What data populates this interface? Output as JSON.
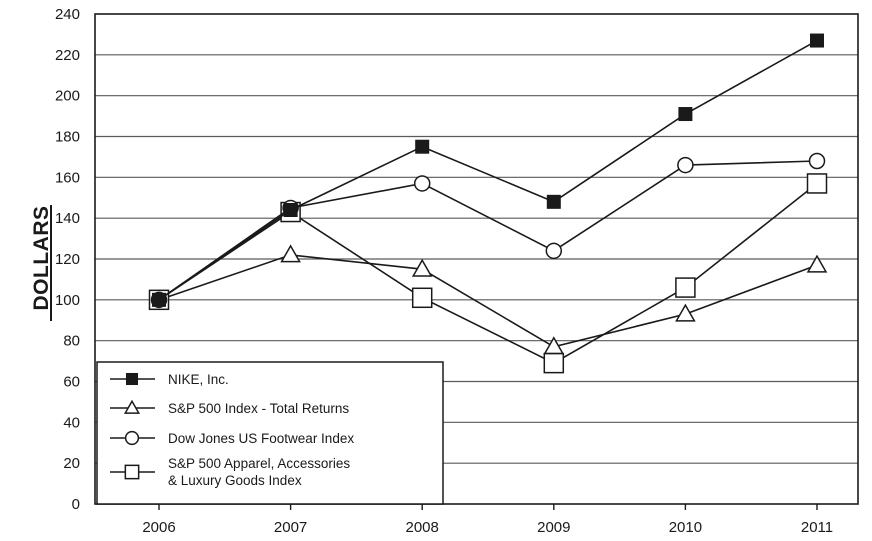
{
  "chart_data": {
    "type": "line",
    "ylabel": "DOLLARS",
    "xlabel": "",
    "title": "",
    "x": [
      "2006",
      "2007",
      "2008",
      "2009",
      "2010",
      "2011"
    ],
    "ylim": [
      0,
      240
    ],
    "yticks": [
      0,
      20,
      40,
      60,
      80,
      100,
      120,
      140,
      160,
      180,
      200,
      220,
      240
    ],
    "grid": "horizontal",
    "legend_position": "bottom-left",
    "series": [
      {
        "name": "NIKE, Inc.",
        "marker": "filled-square",
        "values": [
          100,
          144,
          175,
          148,
          191,
          227
        ]
      },
      {
        "name": "S&P 500 Index - Total Returns",
        "marker": "open-triangle",
        "values": [
          100,
          122,
          115,
          77,
          93,
          117
        ]
      },
      {
        "name": "Dow Jones US Footwear Index",
        "marker": "open-circle",
        "values": [
          100,
          145,
          157,
          124,
          166,
          168
        ]
      },
      {
        "name": "S&P 500 Apparel, Accessories & Luxury Goods Index",
        "legend_lines": [
          "S&P 500 Apparel, Accessories",
          "& Luxury Goods Index"
        ],
        "marker": "open-square",
        "values": [
          100,
          143,
          101,
          69,
          106,
          157
        ]
      }
    ]
  }
}
